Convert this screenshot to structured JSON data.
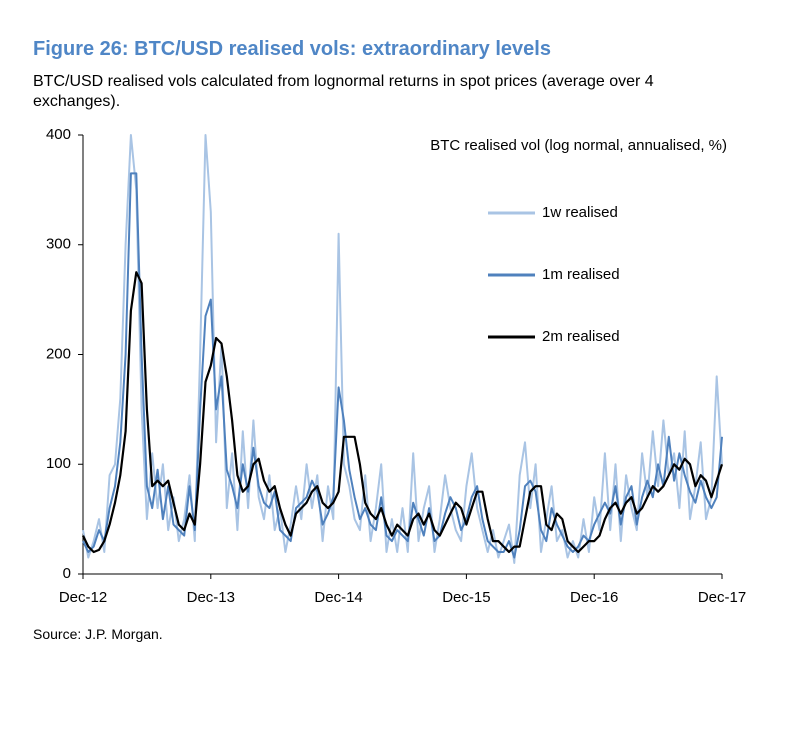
{
  "chart_data": {
    "type": "line",
    "title": "Figure 26: BTC/USD realised vols: extraordinary levels",
    "subtitle": "BTC/USD realised vols calculated from lognormal returns in spot prices (average over 4 exchanges).",
    "annotation": "BTC realised vol (log normal, annualised, %)",
    "source": "Source: J.P. Morgan.",
    "categories": [
      "Dec-12",
      null,
      null,
      null,
      null,
      null,
      null,
      null,
      null,
      null,
      null,
      null,
      null,
      null,
      null,
      null,
      null,
      null,
      null,
      null,
      null,
      null,
      null,
      null,
      "Dec-13",
      null,
      null,
      null,
      null,
      null,
      null,
      null,
      null,
      null,
      null,
      null,
      null,
      null,
      null,
      null,
      null,
      null,
      null,
      null,
      null,
      null,
      null,
      null,
      "Dec-14",
      null,
      null,
      null,
      null,
      null,
      null,
      null,
      null,
      null,
      null,
      null,
      null,
      null,
      null,
      null,
      null,
      null,
      null,
      null,
      null,
      null,
      null,
      null,
      "Dec-15",
      null,
      null,
      null,
      null,
      null,
      null,
      null,
      null,
      null,
      null,
      null,
      null,
      null,
      null,
      null,
      null,
      null,
      null,
      null,
      null,
      null,
      null,
      null,
      "Dec-16",
      null,
      null,
      null,
      null,
      null,
      null,
      null,
      null,
      null,
      null,
      null,
      null,
      null,
      null,
      null,
      null,
      null,
      null,
      null,
      null,
      null,
      null,
      null,
      "Dec-17"
    ],
    "series": [
      {
        "name": "1w realised",
        "color": "#a9c4e4",
        "values": [
          40,
          15,
          30,
          50,
          20,
          90,
          100,
          160,
          300,
          400,
          350,
          150,
          50,
          110,
          60,
          100,
          40,
          70,
          30,
          50,
          90,
          30,
          200,
          400,
          330,
          120,
          210,
          60,
          110,
          40,
          130,
          60,
          140,
          70,
          50,
          90,
          40,
          60,
          20,
          45,
          80,
          50,
          100,
          60,
          90,
          30,
          80,
          50,
          310,
          100,
          80,
          50,
          40,
          90,
          30,
          60,
          100,
          20,
          50,
          20,
          60,
          20,
          110,
          30,
          60,
          80,
          20,
          50,
          90,
          60,
          40,
          30,
          80,
          110,
          60,
          40,
          20,
          40,
          15,
          30,
          45,
          10,
          90,
          120,
          60,
          100,
          20,
          50,
          80,
          30,
          40,
          15,
          30,
          15,
          50,
          20,
          70,
          40,
          110,
          40,
          100,
          30,
          90,
          60,
          40,
          110,
          70,
          130,
          80,
          140,
          90,
          110,
          60,
          130,
          50,
          80,
          120,
          50,
          70,
          180,
          100
        ]
      },
      {
        "name": "1m realised",
        "color": "#4f81bd",
        "values": [
          30,
          20,
          25,
          40,
          30,
          60,
          80,
          120,
          200,
          365,
          365,
          200,
          80,
          60,
          95,
          50,
          80,
          45,
          40,
          35,
          80,
          40,
          150,
          235,
          250,
          150,
          180,
          95,
          80,
          60,
          100,
          75,
          115,
          80,
          65,
          60,
          75,
          40,
          35,
          30,
          60,
          65,
          70,
          85,
          75,
          45,
          55,
          70,
          170,
          140,
          95,
          70,
          50,
          60,
          45,
          40,
          70,
          35,
          30,
          40,
          35,
          30,
          65,
          50,
          35,
          60,
          30,
          35,
          55,
          70,
          60,
          40,
          50,
          70,
          80,
          50,
          30,
          25,
          20,
          20,
          30,
          15,
          40,
          80,
          85,
          75,
          40,
          30,
          60,
          45,
          35,
          25,
          20,
          25,
          35,
          30,
          45,
          55,
          65,
          55,
          80,
          45,
          70,
          80,
          45,
          70,
          85,
          70,
          100,
          80,
          125,
          85,
          110,
          90,
          75,
          65,
          85,
          70,
          60,
          70,
          125
        ]
      },
      {
        "name": "2m realised",
        "color": "#000000",
        "values": [
          35,
          25,
          20,
          22,
          30,
          45,
          65,
          90,
          130,
          240,
          275,
          265,
          150,
          80,
          85,
          80,
          85,
          65,
          45,
          40,
          55,
          45,
          100,
          175,
          190,
          215,
          210,
          180,
          140,
          90,
          75,
          80,
          100,
          105,
          85,
          75,
          80,
          60,
          45,
          35,
          55,
          60,
          65,
          75,
          80,
          65,
          60,
          65,
          75,
          125,
          125,
          125,
          100,
          65,
          55,
          50,
          60,
          45,
          35,
          45,
          40,
          35,
          50,
          55,
          45,
          55,
          40,
          35,
          45,
          55,
          65,
          60,
          45,
          60,
          75,
          75,
          50,
          30,
          30,
          25,
          20,
          25,
          25,
          50,
          75,
          80,
          80,
          45,
          40,
          55,
          50,
          30,
          25,
          20,
          25,
          30,
          30,
          35,
          50,
          60,
          65,
          55,
          65,
          70,
          55,
          60,
          70,
          80,
          75,
          80,
          90,
          100,
          95,
          105,
          100,
          80,
          90,
          85,
          70,
          85,
          100
        ]
      }
    ],
    "ylim": [
      0,
      400
    ],
    "yticks": [
      0,
      100,
      200,
      300,
      400
    ],
    "grid": false,
    "legend": "right"
  }
}
